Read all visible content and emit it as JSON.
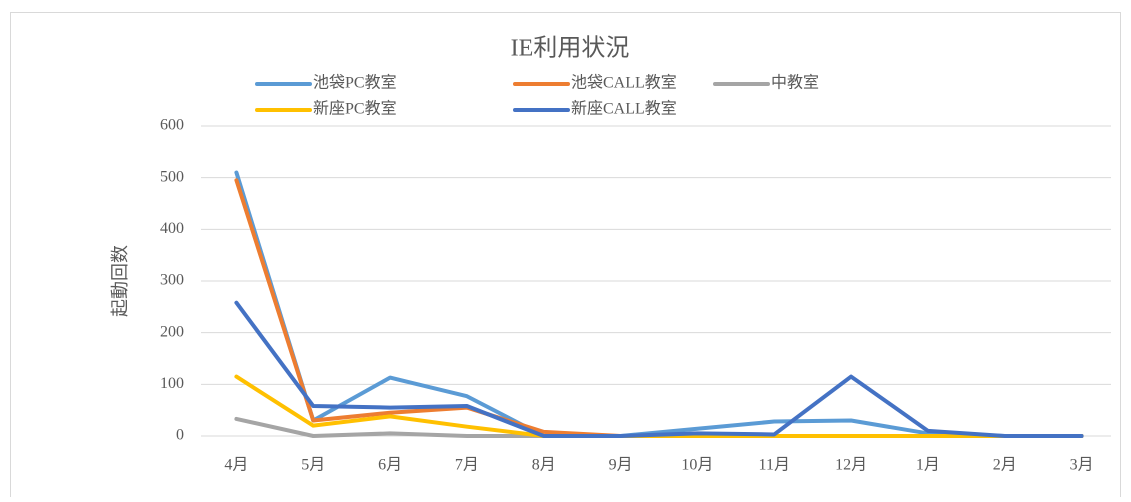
{
  "chart_data": {
    "type": "line",
    "title": "IE利用状況",
    "y_label": "起動回数",
    "categories": [
      "4月",
      "5月",
      "6月",
      "7月",
      "8月",
      "9月",
      "10月",
      "11月",
      "12月",
      "1月",
      "2月",
      "3月"
    ],
    "series": [
      {
        "name": "池袋PC教室",
        "color": "#5b9bd5",
        "values": [
          510,
          30,
          113,
          77,
          0,
          0,
          14,
          28,
          30,
          5,
          0,
          0
        ]
      },
      {
        "name": "池袋CALL教室",
        "color": "#ed7d31",
        "values": [
          495,
          30,
          45,
          55,
          8,
          0,
          0,
          0,
          0,
          0,
          0,
          0
        ]
      },
      {
        "name": "中教室",
        "color": "#a5a5a5",
        "values": [
          33,
          0,
          5,
          0,
          0,
          0,
          0,
          0,
          0,
          0,
          0,
          0
        ]
      },
      {
        "name": "新座PC教室",
        "color": "#ffc000",
        "values": [
          115,
          20,
          38,
          18,
          0,
          0,
          0,
          0,
          0,
          0,
          0,
          0
        ]
      },
      {
        "name": "新座CALL教室",
        "color": "#4472c4",
        "values": [
          258,
          58,
          55,
          58,
          0,
          0,
          5,
          3,
          115,
          10,
          0,
          0
        ]
      }
    ],
    "ylim": [
      0,
      600
    ],
    "yticks": [
      0,
      100,
      200,
      300,
      400,
      500,
      600
    ],
    "grid": true
  }
}
